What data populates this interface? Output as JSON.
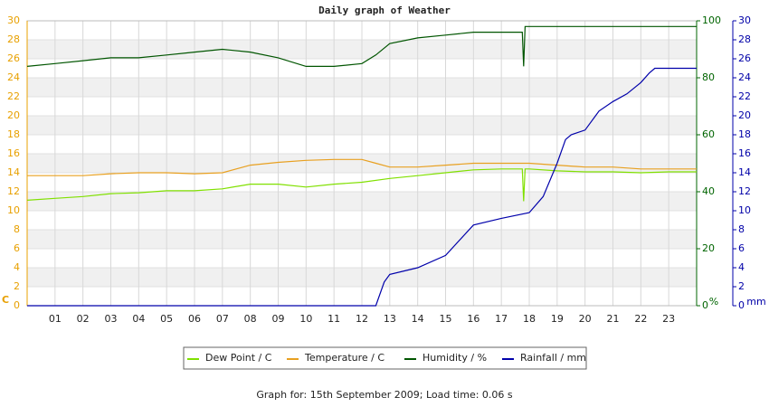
{
  "chart_data": {
    "type": "line",
    "title": "Daily graph of Weather",
    "footer": "Graph for: 15th September 2009; Load time: 0.06 s",
    "y_label": "C",
    "y2_label": "%",
    "y3_label": "mm",
    "y_color": "#e8a000",
    "y2_color": "#006400",
    "y3_color": "#0000a8",
    "xlim": [
      0,
      24
    ],
    "xticks": [
      {
        "value": 1,
        "label": "01"
      },
      {
        "value": 2,
        "label": "02"
      },
      {
        "value": 3,
        "label": "03"
      },
      {
        "value": 4,
        "label": "04"
      },
      {
        "value": 5,
        "label": "05"
      },
      {
        "value": 6,
        "label": "06"
      },
      {
        "value": 7,
        "label": "07"
      },
      {
        "value": 8,
        "label": "08"
      },
      {
        "value": 9,
        "label": "09"
      },
      10,
      11,
      12,
      13,
      14,
      15,
      16,
      17,
      18,
      19,
      20,
      21,
      22,
      23
    ],
    "ylim": [
      0,
      30
    ],
    "yticks": [
      0,
      2,
      4,
      6,
      8,
      10,
      12,
      14,
      16,
      18,
      20,
      22,
      24,
      26,
      28,
      30
    ],
    "y2lim": [
      0,
      100
    ],
    "y2ticks": [
      0,
      20,
      40,
      60,
      80,
      100
    ],
    "y3lim": [
      0,
      30
    ],
    "y3ticks": [
      0,
      2,
      4,
      6,
      8,
      10,
      12,
      14,
      16,
      18,
      20,
      22,
      24,
      26,
      28,
      30
    ],
    "grid": true,
    "legend": "bottom",
    "series": [
      {
        "name": "Dew Point / C",
        "color": "#80e000",
        "axis": "y",
        "x": [
          0,
          1,
          2,
          3,
          4,
          5,
          6,
          7,
          8,
          9,
          10,
          11,
          12,
          13,
          14,
          15,
          16,
          17,
          17.75,
          17.8,
          17.85,
          18,
          19,
          20,
          21,
          22,
          23,
          24
        ],
        "values": [
          11.1,
          11.3,
          11.5,
          11.8,
          11.9,
          12.1,
          12.1,
          12.3,
          12.8,
          12.8,
          12.5,
          12.8,
          13.0,
          13.4,
          13.7,
          14.0,
          14.3,
          14.4,
          14.4,
          11.0,
          14.4,
          14.4,
          14.2,
          14.1,
          14.1,
          14.0,
          14.1,
          14.1
        ]
      },
      {
        "name": "Temperature / C",
        "color": "#e8a020",
        "axis": "y",
        "x": [
          0,
          1,
          2,
          3,
          4,
          5,
          6,
          7,
          8,
          9,
          10,
          11,
          12,
          12.5,
          13,
          14,
          15,
          16,
          17,
          18,
          19,
          20,
          21,
          22,
          23,
          24
        ],
        "values": [
          13.7,
          13.7,
          13.7,
          13.9,
          14.0,
          14.0,
          13.9,
          14.0,
          14.8,
          15.1,
          15.3,
          15.4,
          15.4,
          15.0,
          14.6,
          14.6,
          14.8,
          15.0,
          15.0,
          15.0,
          14.8,
          14.6,
          14.6,
          14.4,
          14.4,
          14.4
        ]
      },
      {
        "name": "Humidity / %",
        "color": "#005500",
        "axis": "y2",
        "x": [
          0,
          1,
          2,
          3,
          4,
          5,
          6,
          7,
          8,
          9,
          10,
          11,
          12,
          12.5,
          13,
          14,
          15,
          16,
          17,
          17.75,
          17.8,
          17.85,
          18,
          22,
          24
        ],
        "values": [
          84,
          85,
          86,
          87,
          87,
          88,
          89,
          90,
          89,
          87,
          84,
          84,
          85,
          88,
          92,
          94,
          95,
          96,
          96,
          96,
          84,
          98,
          98,
          98,
          98
        ]
      },
      {
        "name": "Rainfall / mm",
        "color": "#0000aa",
        "axis": "y3",
        "x": [
          0,
          12.5,
          12.8,
          13,
          14,
          15,
          16,
          17,
          18,
          18.5,
          19,
          19.3,
          19.5,
          20,
          20.5,
          21,
          21.5,
          22,
          22.3,
          22.5,
          23,
          24
        ],
        "values": [
          0,
          0,
          2.5,
          3.3,
          4.0,
          5.3,
          8.5,
          9.2,
          9.8,
          11.5,
          15.0,
          17.5,
          18.0,
          18.5,
          20.5,
          21.5,
          22.3,
          23.5,
          24.5,
          25.0,
          25.0,
          25.0
        ]
      }
    ]
  }
}
